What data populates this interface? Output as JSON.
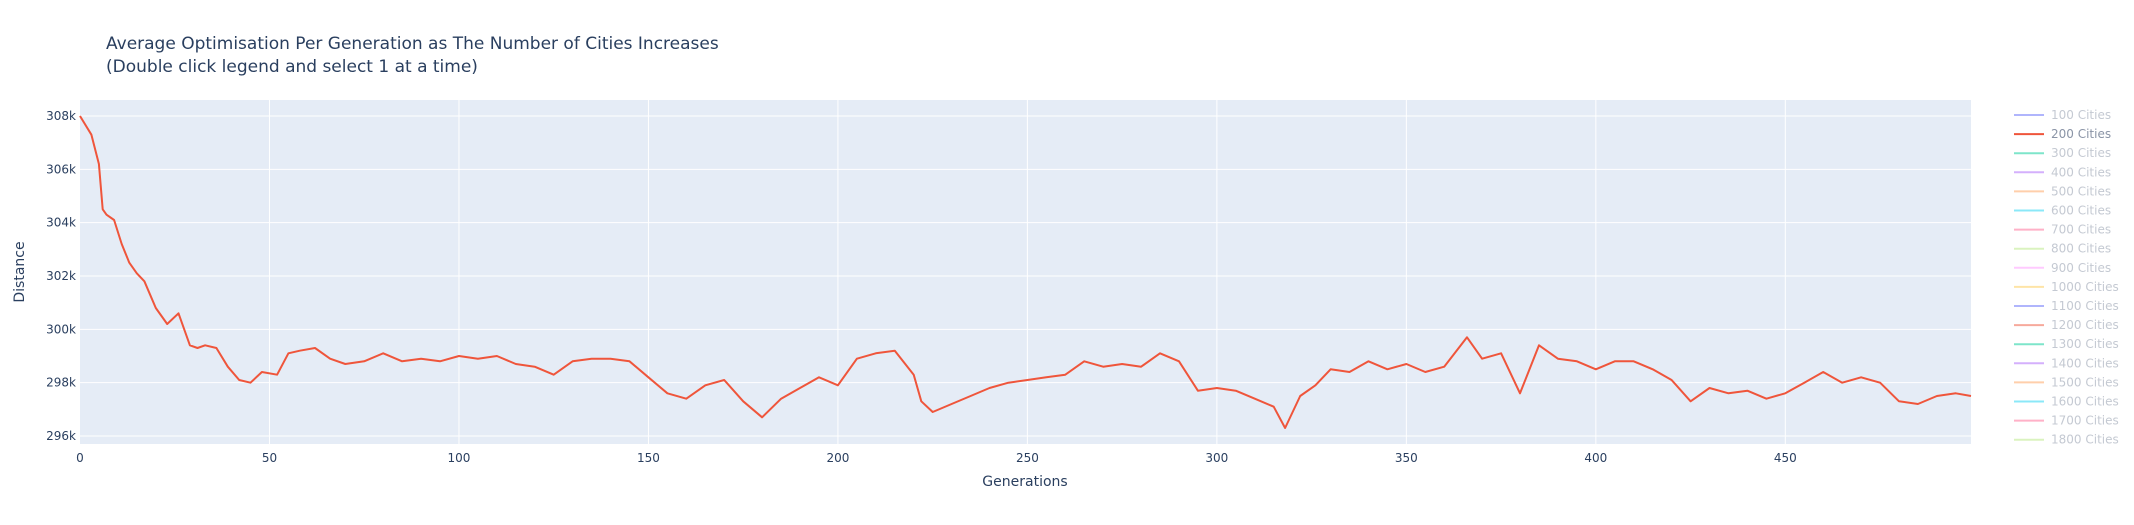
{
  "chart_data": {
    "type": "line",
    "title": "Average Optimisation Per Generation as The Number of Cities Increases",
    "subtitle": "(Double click legend and select 1 at a time)",
    "xlabel": "Generations",
    "ylabel": "Distance",
    "xlim": [
      0,
      499
    ],
    "ylim": [
      295700,
      308600
    ],
    "x_ticks": [
      0,
      50,
      100,
      150,
      200,
      250,
      300,
      350,
      400,
      450
    ],
    "x_tick_labels": [
      "0",
      "50",
      "100",
      "150",
      "200",
      "250",
      "300",
      "350",
      "400",
      "450"
    ],
    "y_ticks": [
      296000,
      298000,
      300000,
      302000,
      304000,
      306000,
      308000
    ],
    "y_tick_labels": [
      "296k",
      "298k",
      "300k",
      "302k",
      "304k",
      "306k",
      "308k"
    ],
    "grid": true,
    "legend_position": "right",
    "series": [
      {
        "name": "100 Cities",
        "color": "#636efa",
        "visible": false
      },
      {
        "name": "200 Cities",
        "color": "#ef553b",
        "visible": true,
        "x": [
          0,
          3,
          5,
          6,
          7,
          9,
          11,
          13,
          15,
          17,
          20,
          23,
          26,
          29,
          31,
          33,
          36,
          39,
          42,
          45,
          48,
          52,
          55,
          58,
          62,
          66,
          70,
          75,
          80,
          85,
          90,
          95,
          100,
          105,
          110,
          115,
          120,
          125,
          130,
          135,
          140,
          145,
          150,
          155,
          160,
          165,
          170,
          175,
          180,
          185,
          190,
          195,
          200,
          205,
          210,
          215,
          220,
          222,
          225,
          230,
          235,
          240,
          245,
          250,
          255,
          260,
          265,
          270,
          275,
          280,
          285,
          290,
          295,
          300,
          305,
          310,
          315,
          318,
          322,
          326,
          330,
          335,
          340,
          345,
          350,
          355,
          360,
          366,
          370,
          375,
          380,
          385,
          390,
          395,
          400,
          405,
          410,
          415,
          420,
          425,
          430,
          435,
          440,
          445,
          450,
          455,
          460,
          465,
          470,
          475,
          480,
          485,
          490,
          495,
          499
        ],
        "y": [
          308000,
          307300,
          306200,
          304500,
          304300,
          304100,
          303200,
          302500,
          302100,
          301800,
          300800,
          300200,
          300600,
          299400,
          299300,
          299400,
          299300,
          298600,
          298100,
          298000,
          298400,
          298300,
          299100,
          299200,
          299300,
          298900,
          298700,
          298800,
          299100,
          298800,
          298900,
          298800,
          299000,
          298900,
          299000,
          298700,
          298600,
          298300,
          298800,
          298900,
          298900,
          298800,
          298200,
          297600,
          297400,
          297900,
          298100,
          297300,
          296700,
          297400,
          297800,
          298200,
          297900,
          298900,
          299100,
          299200,
          298300,
          297300,
          296900,
          297200,
          297500,
          297800,
          298000,
          298100,
          298200,
          298300,
          298800,
          298600,
          298700,
          298600,
          299100,
          298800,
          297700,
          297800,
          297700,
          297400,
          297100,
          296300,
          297500,
          297900,
          298500,
          298400,
          298800,
          298500,
          298700,
          298400,
          298600,
          299700,
          298900,
          299100,
          297600,
          299400,
          298900,
          298800,
          298500,
          298800,
          298800,
          298500,
          298100,
          297300,
          297800,
          297600,
          297700,
          297400,
          297600,
          298000,
          298400,
          298000,
          298200,
          298000,
          297300,
          297200,
          297500,
          297600,
          297500
        ]
      },
      {
        "name": "300 Cities",
        "color": "#00cc96",
        "visible": false
      },
      {
        "name": "400 Cities",
        "color": "#ab63fa",
        "visible": false
      },
      {
        "name": "500 Cities",
        "color": "#ffa15a",
        "visible": false
      },
      {
        "name": "600 Cities",
        "color": "#19d3f3",
        "visible": false
      },
      {
        "name": "700 Cities",
        "color": "#ff6692",
        "visible": false
      },
      {
        "name": "800 Cities",
        "color": "#b6e880",
        "visible": false
      },
      {
        "name": "900 Cities",
        "color": "#ff97ff",
        "visible": false
      },
      {
        "name": "1000 Cities",
        "color": "#fecb52",
        "visible": false
      },
      {
        "name": "1100 Cities",
        "color": "#636efa",
        "visible": false
      },
      {
        "name": "1200 Cities",
        "color": "#ef553b",
        "visible": false
      },
      {
        "name": "1300 Cities",
        "color": "#00cc96",
        "visible": false
      },
      {
        "name": "1400 Cities",
        "color": "#ab63fa",
        "visible": false
      },
      {
        "name": "1500 Cities",
        "color": "#ffa15a",
        "visible": false
      },
      {
        "name": "1600 Cities",
        "color": "#19d3f3",
        "visible": false
      },
      {
        "name": "1700 Cities",
        "color": "#ff6692",
        "visible": false
      },
      {
        "name": "1800 Cities",
        "color": "#b6e880",
        "visible": false
      }
    ]
  },
  "colors": {
    "plot_bg": "#e5ecf6",
    "grid": "#ffffff",
    "text": "#2a3f5f",
    "legend_text": "#8a94a6"
  }
}
